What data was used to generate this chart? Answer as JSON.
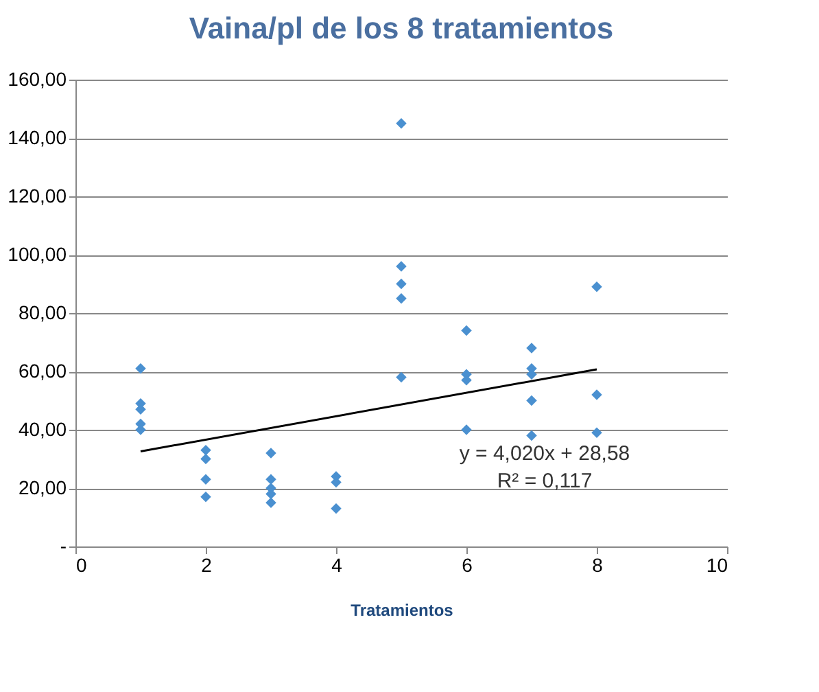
{
  "chart_data": {
    "type": "scatter",
    "title": "Vaina/pl de los 8 tratamientos",
    "xlabel": "Tratamientos",
    "xlim": [
      0,
      10
    ],
    "xticks": [
      0,
      2,
      4,
      6,
      8,
      10
    ],
    "ylim": [
      0,
      160
    ],
    "yticks": [
      {
        "value": 0,
        "label": "-"
      },
      {
        "value": 20,
        "label": "20,00"
      },
      {
        "value": 40,
        "label": "40,00"
      },
      {
        "value": 60,
        "label": "60,00"
      },
      {
        "value": 80,
        "label": "80,00"
      },
      {
        "value": 100,
        "label": "100,00"
      },
      {
        "value": 120,
        "label": "120,00"
      },
      {
        "value": 140,
        "label": "140,00"
      },
      {
        "value": 160,
        "label": "160,00"
      }
    ],
    "grid": "y",
    "series": [
      {
        "color": "#4a90d0",
        "marker": "diamond",
        "x": [
          1,
          1,
          1,
          1,
          1,
          2,
          2,
          2,
          2,
          3,
          3,
          3,
          3,
          3,
          4,
          4,
          4,
          5,
          5,
          5,
          5,
          5,
          6,
          6,
          6,
          6,
          7,
          7,
          7,
          7,
          7,
          8,
          8,
          8
        ],
        "values": [
          61,
          49,
          47,
          42,
          40,
          33,
          30,
          23,
          17,
          32,
          23,
          20,
          18,
          15,
          24,
          22,
          13,
          145,
          96,
          90,
          85,
          58,
          74,
          59,
          57,
          40,
          68,
          61,
          59,
          50,
          38,
          89,
          52,
          39
        ]
      },
      {
        "type": "line",
        "color": "#000000",
        "marker": "none",
        "x": [
          1,
          8
        ],
        "values": [
          32.6,
          60.7
        ]
      }
    ],
    "annotations": [
      "y = 4,020x + 28,58",
      "R² = 0,117"
    ]
  }
}
